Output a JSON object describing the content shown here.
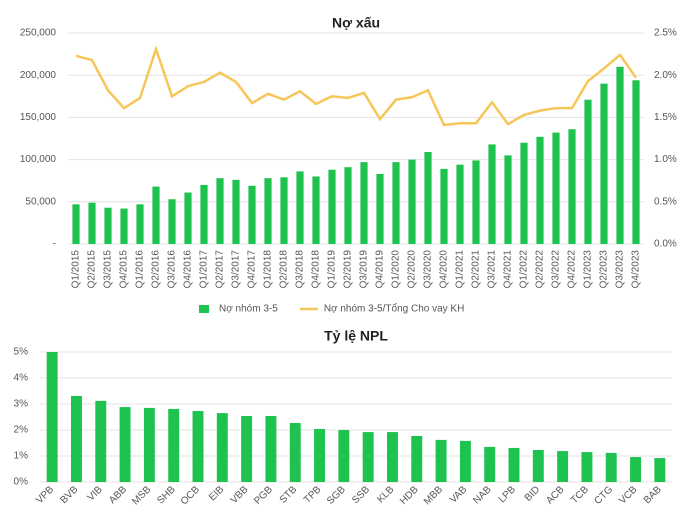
{
  "chart_data": [
    {
      "type": "bar",
      "title": "Nợ xấu",
      "categories": [
        "Q1/2015",
        "Q2/2015",
        "Q3/2015",
        "Q4/2015",
        "Q1/2016",
        "Q2/2016",
        "Q3/2016",
        "Q4/2016",
        "Q1/2017",
        "Q2/2017",
        "Q3/2017",
        "Q4/2017",
        "Q1/2018",
        "Q2/2018",
        "Q3/2018",
        "Q4/2018",
        "Q1/2019",
        "Q2/2019",
        "Q3/2019",
        "Q4/2019",
        "Q1/2020",
        "Q2/2020",
        "Q3/2020",
        "Q4/2020",
        "Q1/2021",
        "Q2/2021",
        "Q3/2021",
        "Q4/2021",
        "Q1/2022",
        "Q2/2022",
        "Q3/2022",
        "Q4/2022",
        "Q1/2023",
        "Q2/2023",
        "Q3/2023",
        "Q4/2023"
      ],
      "series": [
        {
          "name": "Nợ nhóm 3-5",
          "type": "bar",
          "color": "#1ec24f",
          "values": [
            47000,
            49000,
            43000,
            42000,
            47000,
            68000,
            53000,
            61000,
            70000,
            78000,
            76000,
            69000,
            78000,
            79000,
            86000,
            80000,
            88000,
            91000,
            97000,
            83000,
            97000,
            100000,
            109000,
            89000,
            94000,
            99000,
            118000,
            105000,
            120000,
            127000,
            132000,
            136000,
            171000,
            190000,
            210000,
            194000
          ]
        },
        {
          "name": "Nợ nhóm 3-5/Tổng Cho vay KH",
          "type": "line",
          "axis": "y2",
          "color": "#f7c65a",
          "values": [
            2.23,
            2.18,
            1.82,
            1.61,
            1.73,
            2.31,
            1.75,
            1.87,
            1.92,
            2.03,
            1.92,
            1.67,
            1.78,
            1.71,
            1.81,
            1.66,
            1.75,
            1.73,
            1.79,
            1.48,
            1.71,
            1.74,
            1.82,
            1.41,
            1.43,
            1.43,
            1.68,
            1.42,
            1.53,
            1.58,
            1.61,
            1.61,
            1.93,
            2.08,
            2.24,
            1.97
          ]
        }
      ],
      "ylim": [
        0,
        250000
      ],
      "yticks": [
        {
          "value": 0,
          "label": "-"
        },
        {
          "value": 50000,
          "label": "50,000"
        },
        {
          "value": 100000,
          "label": "100,000"
        },
        {
          "value": 150000,
          "label": "150,000"
        },
        {
          "value": 200000,
          "label": "200,000"
        },
        {
          "value": 250000,
          "label": "250,000"
        }
      ],
      "y2lim": [
        0,
        2.5
      ],
      "y2ticks": [
        {
          "value": 0,
          "label": "0.0%"
        },
        {
          "value": 0.5,
          "label": "0.5%"
        },
        {
          "value": 1,
          "label": "1.0%"
        },
        {
          "value": 1.5,
          "label": "1.5%"
        },
        {
          "value": 2,
          "label": "2.0%"
        },
        {
          "value": 2.5,
          "label": "2.5%"
        }
      ],
      "grid": true,
      "legend": "bottom"
    },
    {
      "type": "bar",
      "title": "Tỷ lệ NPL",
      "categories": [
        "VPB",
        "BVB",
        "VIB",
        "ABB",
        "MSB",
        "SHB",
        "OCB",
        "EIB",
        "VBB",
        "PGB",
        "STB",
        "TPB",
        "SGB",
        "SSB",
        "KLB",
        "HDB",
        "MBB",
        "VAB",
        "NAB",
        "LPB",
        "BID",
        "ACB",
        "TCB",
        "CTG",
        "VCB",
        "BAB"
      ],
      "series": [
        {
          "name": "Tỷ lệ NPL",
          "type": "bar",
          "color": "#1ec24f",
          "values": [
            5.0,
            3.31,
            3.12,
            2.88,
            2.85,
            2.81,
            2.73,
            2.65,
            2.54,
            2.54,
            2.27,
            2.04,
            2.0,
            1.92,
            1.92,
            1.77,
            1.62,
            1.58,
            1.35,
            1.31,
            1.23,
            1.19,
            1.15,
            1.12,
            0.96,
            0.92
          ]
        }
      ],
      "ylim": [
        0,
        5
      ],
      "yticks": [
        {
          "value": 0,
          "label": "0%"
        },
        {
          "value": 1,
          "label": "1%"
        },
        {
          "value": 2,
          "label": "2%"
        },
        {
          "value": 3,
          "label": "3%"
        },
        {
          "value": 4,
          "label": "4%"
        },
        {
          "value": 5,
          "label": "5%"
        }
      ],
      "grid": true
    }
  ]
}
